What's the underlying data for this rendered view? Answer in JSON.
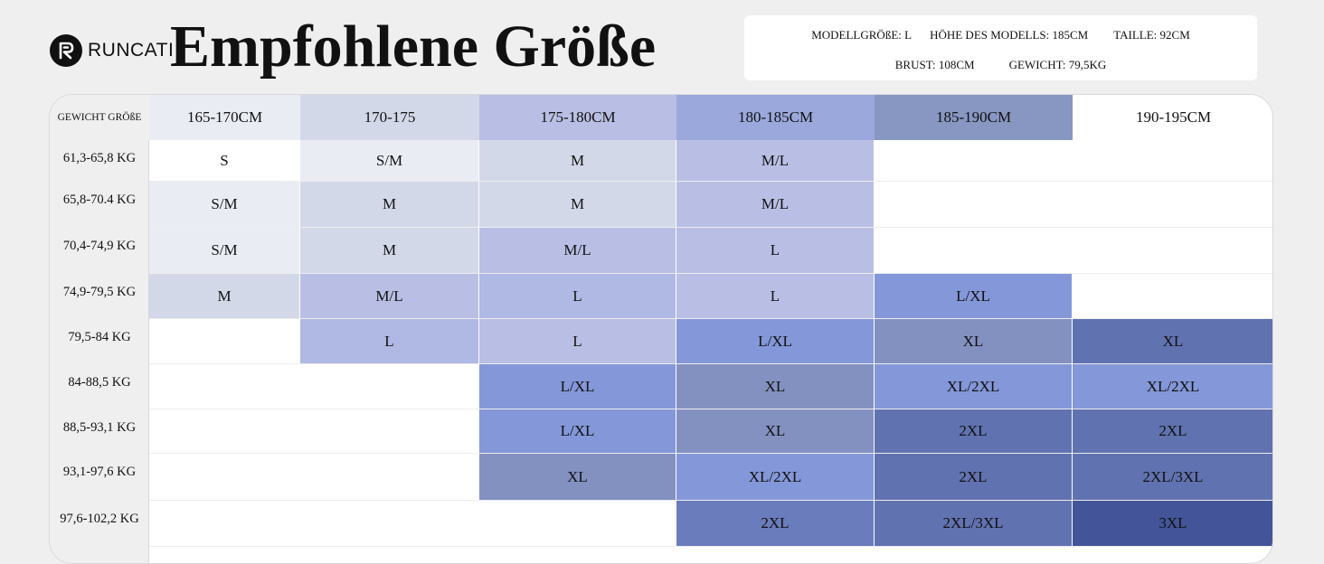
{
  "brand": {
    "name": "RUNCATI",
    "logo_icon": "runcati-logo-icon"
  },
  "title": "Empfohlene Größe",
  "model_info": {
    "size": "MODELLGRÖßE: L",
    "height": "HÖHE DES MODELLS: 185CM",
    "waist": "TAILLE: 92CM",
    "chest": "BRUST: 108CM",
    "weight": "GEWICHT: 79,5KG"
  },
  "table": {
    "corner_label": "GEWICHT GRÖßE",
    "height_columns": [
      "165-170CM",
      "170-175",
      "175-180CM",
      "180-185CM",
      "185-190CM",
      "190-195CM"
    ],
    "weight_rows": [
      "61,3-65,8 KG",
      "65,8-70.4 KG",
      "70,4-74,9 KG",
      "74,9-79,5 KG",
      "79,5-84 KG",
      "84-88,5 KG",
      "88,5-93,1 KG",
      "93,1-97,6 KG",
      "97,6-102,2 KG"
    ],
    "sizes": [
      [
        "S",
        "S/M",
        "M",
        "M/L",
        "",
        ""
      ],
      [
        "S/M",
        "M",
        "M",
        "M/L",
        "",
        ""
      ],
      [
        "S/M",
        "M",
        "M/L",
        "L",
        "",
        ""
      ],
      [
        "M",
        "M/L",
        "L",
        "L",
        "L/XL",
        ""
      ],
      [
        "",
        "L",
        "L",
        "L/XL",
        "XL",
        "XL"
      ],
      [
        "",
        "",
        "L/XL",
        "XL",
        "XL/2XL",
        "XL/2XL"
      ],
      [
        "",
        "",
        "L/XL",
        "XL",
        "2XL",
        "2XL"
      ],
      [
        "",
        "",
        "XL",
        "XL/2XL",
        "2XL",
        "2XL/3XL"
      ],
      [
        "",
        "",
        "",
        "2XL",
        "2XL/3XL",
        "3XL"
      ]
    ]
  },
  "colors": {
    "header": [
      "#e9ecf3",
      "#d3d8e9",
      "#b9bfe4",
      "#9ba8dc",
      "#8896c2",
      "#ffffff"
    ],
    "cells": [
      [
        "#ffffff",
        "#e9ecf3",
        "#d3d8e9",
        "#b9bfe4",
        "#ffffff",
        "#ffffff"
      ],
      [
        "#e9ecf3",
        "#d3d8e9",
        "#d3d8e9",
        "#b9bfe4",
        "#ffffff",
        "#ffffff"
      ],
      [
        "#e9ecf3",
        "#d3d8e9",
        "#b9bfe4",
        "#b9bfe4",
        "#ffffff",
        "#ffffff"
      ],
      [
        "#d3d8e9",
        "#b9bfe4",
        "#b0b9e3",
        "#b9bfe4",
        "#8497d9",
        "#ffffff"
      ],
      [
        "#ffffff",
        "#b0b9e3",
        "#b9bfe4",
        "#8497d9",
        "#8391c1",
        "#6172b0"
      ],
      [
        "#ffffff",
        "#ffffff",
        "#8497d9",
        "#8391c1",
        "#8497d9",
        "#8497d9"
      ],
      [
        "#ffffff",
        "#ffffff",
        "#8497d9",
        "#8391c1",
        "#6172b0",
        "#6172b0"
      ],
      [
        "#ffffff",
        "#ffffff",
        "#8391c1",
        "#8497d9",
        "#6172b0",
        "#6172b0"
      ],
      [
        "#ffffff",
        "#ffffff",
        "#ffffff",
        "#6a7cbc",
        "#6172b0",
        "#435598"
      ]
    ]
  }
}
